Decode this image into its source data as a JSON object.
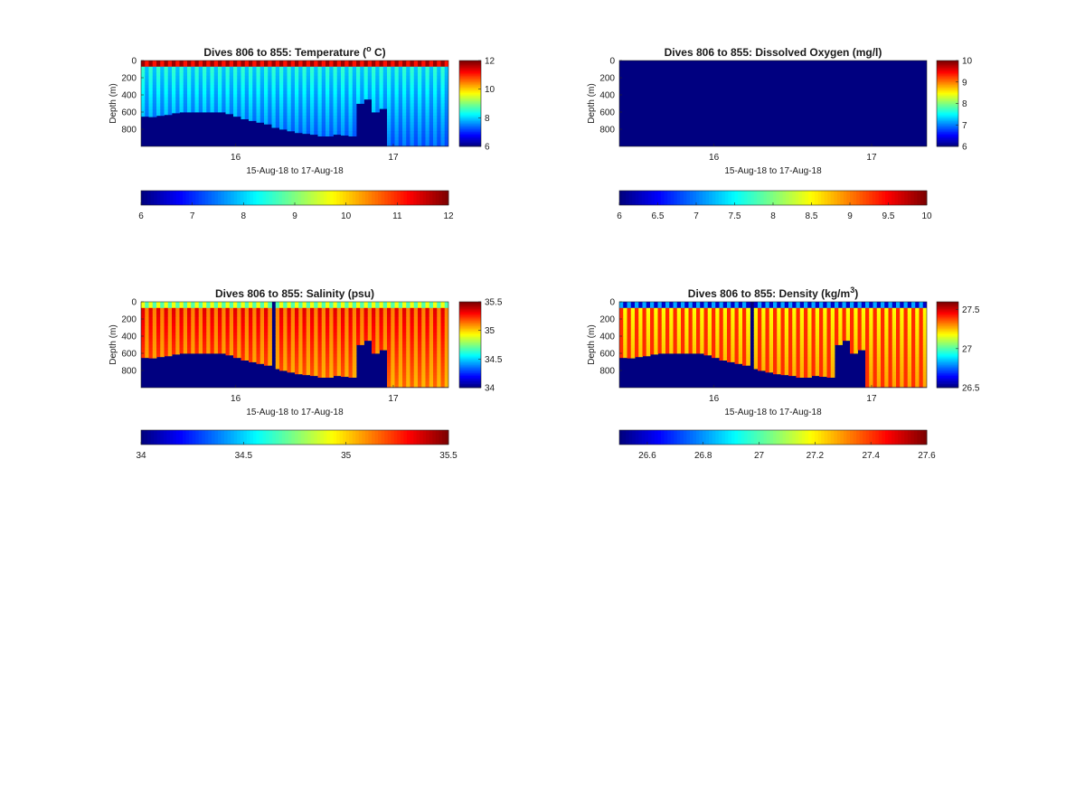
{
  "chart_data": [
    {
      "type": "heatmap",
      "id": "temperature",
      "title": "Dives 806 to 855: Temperature (° C)",
      "title_main": "Dives 806 to 855: Temperature (",
      "title_sup": "o",
      "title_tail": " C)",
      "ylabel": "Depth (m)",
      "xlabel": "15-Aug-18 to 17-Aug-18",
      "yticks": [
        "0",
        "200",
        "400",
        "600",
        "800"
      ],
      "ytick_values": [
        0,
        200,
        400,
        600,
        800
      ],
      "ylim": [
        0,
        1000
      ],
      "xlim": [
        15.4,
        17.35
      ],
      "xticks": [
        "16",
        "17"
      ],
      "xtick_values": [
        16,
        17
      ],
      "clim": [
        6,
        12
      ],
      "colorbar_ticks": [
        "6",
        "8",
        "10",
        "12"
      ],
      "colorbar_tick_values": [
        6,
        8,
        10,
        12
      ],
      "hcolorbar_ticks": [
        "6",
        "7",
        "8",
        "9",
        "10",
        "11",
        "12"
      ],
      "hcolorbar_tick_values": [
        6,
        7,
        8,
        9,
        10,
        11,
        12
      ],
      "surface_value": 11.5,
      "mid_value": 8.3,
      "deep_value": 7.3,
      "stripe_amp": 0.35,
      "bottom_depth": [
        650,
        655,
        640,
        630,
        610,
        600,
        600,
        600,
        600,
        600,
        600,
        620,
        650,
        680,
        700,
        720,
        740,
        780,
        800,
        820,
        840,
        850,
        860,
        880,
        880,
        860,
        870,
        880,
        500,
        450,
        600,
        560,
        990,
        990,
        990,
        990,
        990,
        990,
        990,
        990
      ],
      "top_band": true,
      "gap_column": null
    },
    {
      "type": "heatmap",
      "id": "oxygen",
      "title": "Dives 806 to 855: Dissolved Oxygen (mg/l)",
      "title_main": "Dives 806 to 855: Dissolved Oxygen (mg/l)",
      "title_sup": "",
      "title_tail": "",
      "ylabel": "Depth (m)",
      "xlabel": "15-Aug-18 to 17-Aug-18",
      "yticks": [
        "0",
        "200",
        "400",
        "600",
        "800"
      ],
      "ytick_values": [
        0,
        200,
        400,
        600,
        800
      ],
      "ylim": [
        0,
        1000
      ],
      "xlim": [
        15.4,
        17.35
      ],
      "xticks": [
        "16",
        "17"
      ],
      "xtick_values": [
        16,
        17
      ],
      "clim": [
        6,
        10
      ],
      "colorbar_ticks": [
        "6",
        "7",
        "8",
        "9",
        "10"
      ],
      "colorbar_tick_values": [
        6,
        7,
        8,
        9,
        10
      ],
      "hcolorbar_ticks": [
        "6",
        "6.5",
        "7",
        "7.5",
        "8",
        "8.5",
        "9",
        "9.5",
        "10"
      ],
      "hcolorbar_tick_values": [
        6,
        6.5,
        7,
        7.5,
        8,
        8.5,
        9,
        9.5,
        10
      ],
      "uniform_value": 6,
      "bottom_depth": [],
      "top_band": false,
      "gap_column": null
    },
    {
      "type": "heatmap",
      "id": "salinity",
      "title": "Dives 806 to 855: Salinity (psu)",
      "title_main": "Dives 806 to 855: Salinity (psu)",
      "title_sup": "",
      "title_tail": "",
      "ylabel": "Depth (m)",
      "xlabel": "15-Aug-18 to 17-Aug-18",
      "yticks": [
        "0",
        "200",
        "400",
        "600",
        "800"
      ],
      "ytick_values": [
        0,
        200,
        400,
        600,
        800
      ],
      "ylim": [
        0,
        1000
      ],
      "xlim": [
        15.4,
        17.35
      ],
      "xticks": [
        "16",
        "17"
      ],
      "xtick_values": [
        16,
        17
      ],
      "clim": [
        34,
        35.5
      ],
      "colorbar_ticks": [
        "34",
        "34.5",
        "35",
        "35.5"
      ],
      "colorbar_tick_values": [
        34,
        34.5,
        35,
        35.5
      ],
      "hcolorbar_ticks": [
        "34",
        "34.5",
        "35",
        "35.5"
      ],
      "hcolorbar_tick_values": [
        34,
        34.5,
        35,
        35.5
      ],
      "surface_value": 34.8,
      "mid_value": 35.25,
      "deep_value": 35.1,
      "stripe_amp": 0.12,
      "bottom_depth": [
        650,
        655,
        640,
        630,
        610,
        600,
        600,
        600,
        600,
        600,
        600,
        620,
        650,
        680,
        700,
        720,
        740,
        780,
        800,
        820,
        840,
        850,
        860,
        880,
        880,
        860,
        870,
        880,
        500,
        450,
        600,
        560,
        990,
        990,
        990,
        990,
        990,
        990,
        990,
        990
      ],
      "top_band": true,
      "gap_column": 17
    },
    {
      "type": "heatmap",
      "id": "density",
      "title": "Dives 806 to 855: Density (kg/m³)",
      "title_main": "Dives 806 to 855: Density (kg/m",
      "title_sup": "3",
      "title_tail": ")",
      "ylabel": "Depth (m)",
      "xlabel": "15-Aug-18 to 17-Aug-18",
      "yticks": [
        "0",
        "200",
        "400",
        "600",
        "800"
      ],
      "ytick_values": [
        0,
        200,
        400,
        600,
        800
      ],
      "ylim": [
        0,
        1000
      ],
      "xlim": [
        15.4,
        17.35
      ],
      "xticks": [
        "16",
        "17"
      ],
      "xtick_values": [
        16,
        17
      ],
      "clim": [
        26.5,
        27.6
      ],
      "colorbar_ticks": [
        "26.5",
        "27",
        "27.5"
      ],
      "colorbar_tick_values": [
        26.5,
        27,
        27.5
      ],
      "hcolorbar_ticks": [
        "26.6",
        "26.8",
        "27",
        "27.2",
        "27.4",
        "27.6"
      ],
      "hcolorbar_tick_values": [
        26.6,
        26.8,
        27,
        27.2,
        27.4,
        27.6
      ],
      "surface_value": 26.7,
      "mid_value": 27.3,
      "deep_value": 27.35,
      "stripe_amp": 0.12,
      "bottom_depth": [
        650,
        655,
        640,
        630,
        610,
        600,
        600,
        600,
        600,
        600,
        600,
        620,
        650,
        680,
        700,
        720,
        740,
        780,
        800,
        820,
        840,
        850,
        860,
        880,
        880,
        860,
        870,
        880,
        500,
        450,
        600,
        560,
        990,
        990,
        990,
        990,
        990,
        990,
        990,
        990
      ],
      "top_band": true,
      "gap_column": 17
    }
  ]
}
